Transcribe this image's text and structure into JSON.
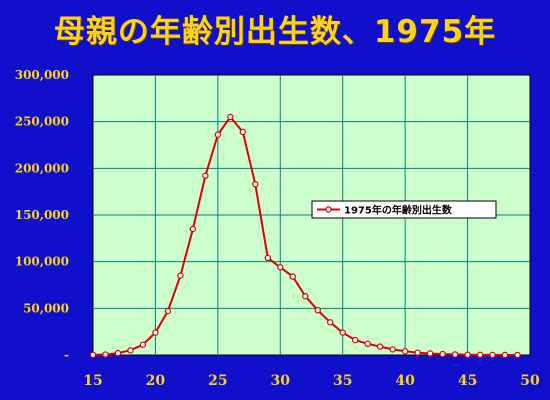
{
  "chart_data": {
    "type": "line",
    "title": "母親の年齢別出生数、1975年",
    "xlabel": "",
    "ylabel": "",
    "xlim": [
      15,
      50
    ],
    "ylim": [
      0,
      300000
    ],
    "x_ticks": [
      "15",
      "20",
      "25",
      "30",
      "35",
      "40",
      "45",
      "50"
    ],
    "y_ticks": [
      "-",
      "50,000",
      "100,000",
      "150,000",
      "200,000",
      "250,000",
      "300,000"
    ],
    "grid": true,
    "legend_position": "right-center",
    "colors": {
      "background": "#1010cc",
      "plot": "#ccffcc",
      "grid": "#008080",
      "series": "#dd0000",
      "text": "#ffd21a"
    },
    "series": [
      {
        "name": "1975年の年齢別出生数",
        "x": [
          15,
          16,
          17,
          18,
          19,
          20,
          21,
          22,
          23,
          24,
          25,
          26,
          27,
          28,
          29,
          30,
          31,
          32,
          33,
          34,
          35,
          36,
          37,
          38,
          39,
          40,
          41,
          42,
          43,
          44,
          45,
          46,
          47,
          48,
          49
        ],
        "values": [
          100,
          500,
          2000,
          5000,
          11000,
          24000,
          47000,
          85000,
          135000,
          192000,
          236000,
          255000,
          239000,
          183000,
          104000,
          94000,
          84000,
          63000,
          48000,
          35000,
          24000,
          16000,
          12000,
          9000,
          6000,
          4000,
          2500,
          1600,
          1000,
          600,
          300,
          150,
          80,
          40,
          20
        ]
      }
    ]
  }
}
